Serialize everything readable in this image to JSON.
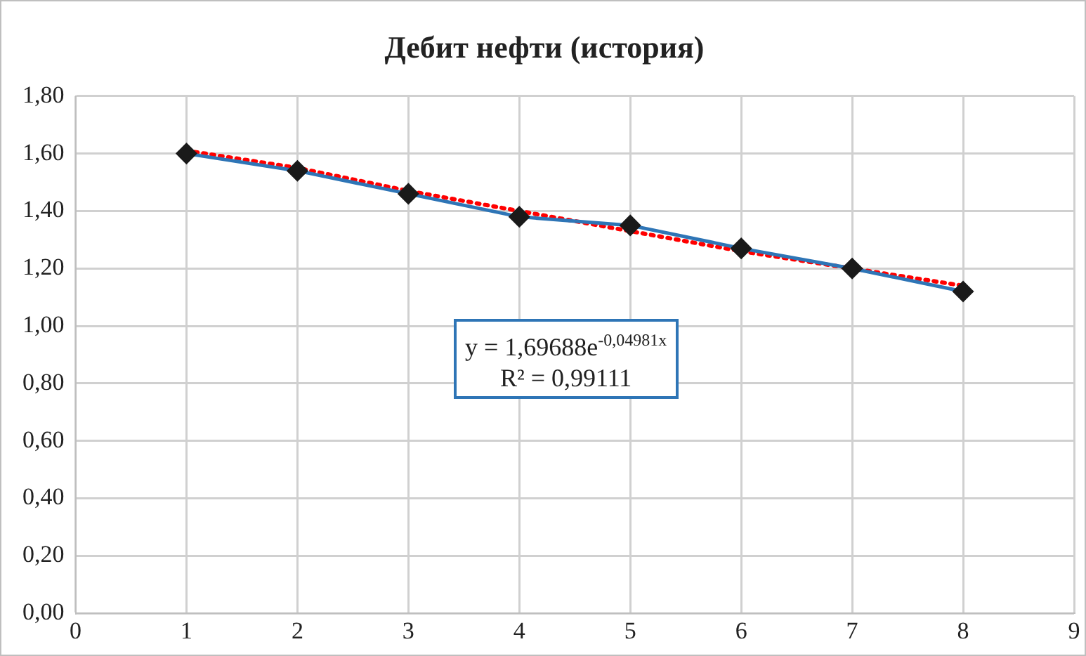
{
  "chart_data": {
    "type": "line",
    "title": "Дебит нефти (история)",
    "x": [
      1,
      2,
      3,
      4,
      5,
      6,
      7,
      8
    ],
    "series": [
      {
        "color": "#2e75b6",
        "marker": "diamond",
        "line_style": "solid",
        "values": [
          1.6,
          1.54,
          1.46,
          1.38,
          1.35,
          1.27,
          1.2,
          1.12
        ]
      },
      {
        "type": "line",
        "color": "#ff0000",
        "marker": "none",
        "line_style": "dotted",
        "x": [
          1,
          2,
          3,
          4,
          5,
          6,
          7,
          8
        ],
        "values": [
          1.61,
          1.55,
          1.47,
          1.4,
          1.33,
          1.26,
          1.2,
          1.14
        ]
      }
    ],
    "xlim": [
      0,
      9
    ],
    "xticks": [
      0,
      1,
      2,
      3,
      4,
      5,
      6,
      7,
      8,
      9
    ],
    "ylim": [
      0,
      1.8
    ],
    "yticks": [
      {
        "value": 0,
        "label": "0,00"
      },
      {
        "value": 0.2,
        "label": "0,20"
      },
      {
        "value": 0.4,
        "label": "0,40"
      },
      {
        "value": 0.6,
        "label": "0,60"
      },
      {
        "value": 0.8,
        "label": "0,80"
      },
      {
        "value": 1,
        "label": "1,00"
      },
      {
        "value": 1.2,
        "label": "1,20"
      },
      {
        "value": 1.4,
        "label": "1,40"
      },
      {
        "value": 1.6,
        "label": "1,60"
      },
      {
        "value": 1.8,
        "label": "1,80"
      }
    ],
    "grid": true,
    "legend": false,
    "annotations": [
      "y = 1,69688e$^{-0,04981x}$",
      "R² = 0,99111"
    ]
  }
}
